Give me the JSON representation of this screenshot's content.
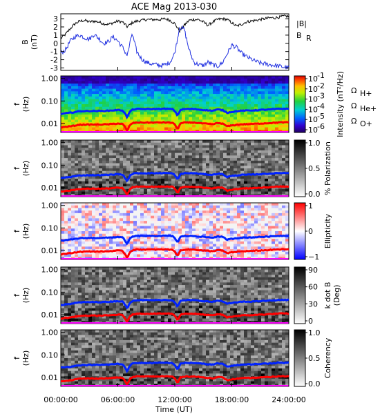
{
  "figure": {
    "title": "ACE Mag 2013-030",
    "xlabel": "Time (UT)",
    "xticks": [
      "00:00:00",
      "06:00:00",
      "12:00:00",
      "18:00:00",
      "24:00:00"
    ]
  },
  "colors": {
    "B_total": "#000000",
    "B_R": "#1f2fe0",
    "H_plus": "#0022ff",
    "He_plus": "#ff0000",
    "O_plus": "#ff00ff"
  },
  "chart_data": [
    {
      "type": "line",
      "panel": "B",
      "ylabel_line1": "B",
      "ylabel_line2": "(nT)",
      "ylim": [
        -3.3,
        3.6
      ],
      "yticks": [
        "3",
        "2",
        "1",
        "0",
        "-1",
        "-2",
        "-3"
      ],
      "xlim_hours": [
        0,
        24
      ],
      "series": [
        {
          "name": "|B|",
          "x_hours": [
            0,
            0.5,
            1,
            1.5,
            2,
            2.5,
            3,
            3.5,
            4,
            4.5,
            5,
            5.5,
            6,
            6.5,
            7,
            7.5,
            8,
            8.5,
            9,
            9.5,
            10,
            10.5,
            11,
            11.5,
            12,
            12.5,
            13,
            13.5,
            14,
            14.5,
            15,
            15.5,
            16,
            16.5,
            17,
            17.5,
            18,
            18.5,
            19,
            19.5,
            20,
            20.5,
            21,
            21.5,
            22,
            22.5,
            23,
            23.5,
            24
          ],
          "values": [
            0.6,
            1.1,
            1.8,
            2.4,
            2.7,
            2.8,
            2.6,
            2.7,
            2.6,
            2.4,
            2.3,
            2.5,
            2.7,
            2.6,
            2.0,
            2.5,
            2.7,
            2.8,
            2.9,
            2.9,
            2.9,
            2.9,
            3.0,
            2.8,
            2.4,
            1.5,
            2.2,
            2.8,
            2.9,
            2.9,
            2.6,
            2.2,
            2.6,
            2.9,
            3.0,
            2.9,
            2.5,
            2.1,
            2.3,
            2.6,
            2.7,
            2.8,
            2.9,
            3.0,
            3.1,
            3.1,
            3.2,
            3.3,
            3.3
          ]
        },
        {
          "name": "B_R",
          "x_hours": [
            0,
            0.5,
            1,
            1.5,
            2,
            2.5,
            3,
            3.5,
            4,
            4.5,
            5,
            5.5,
            6,
            6.5,
            7,
            7.5,
            8,
            8.5,
            9,
            9.5,
            10,
            10.5,
            11,
            11.5,
            12,
            12.5,
            13,
            13.5,
            14,
            14.5,
            15,
            15.5,
            16,
            16.5,
            17,
            17.5,
            18,
            18.5,
            19,
            19.5,
            20,
            20.5,
            21,
            21.5,
            22,
            22.5,
            23,
            23.5,
            24
          ],
          "values": [
            -1.2,
            -0.8,
            0.3,
            0.8,
            1.0,
            0.7,
            0.5,
            1.1,
            0.6,
            0.0,
            0.2,
            0.8,
            0.3,
            -0.5,
            -1.5,
            1.2,
            -1.0,
            -1.9,
            -2.3,
            -2.5,
            -2.6,
            -2.7,
            -2.6,
            -2.3,
            -1.2,
            2.0,
            1.7,
            -0.8,
            -2.3,
            -2.6,
            -2.7,
            -2.3,
            -2.6,
            -2.8,
            -2.4,
            -1.3,
            -0.2,
            -0.5,
            -1.2,
            -1.6,
            -1.9,
            -2.2,
            -2.4,
            -2.5,
            -2.6,
            -2.7,
            -2.8,
            -2.9,
            -3.0
          ]
        }
      ],
      "legend": [
        "|B|",
        "B",
        "R"
      ]
    },
    {
      "type": "heatmap",
      "panel": "intensity",
      "ylabel_line1": "f",
      "ylabel_line2": "(Hz)",
      "yscale": "log",
      "ylim": [
        0.004,
        1.3
      ],
      "yticks": [
        "1.00",
        "0.10",
        "0.01"
      ],
      "colorbar_label": "Intensity (nT²/Hz)",
      "colorbar_ticks": [
        "10",
        "10",
        "10",
        "10",
        "10",
        "10"
      ],
      "colorbar_exponents": [
        "-1",
        "-2",
        "-3",
        "-4",
        "-5",
        "-6"
      ],
      "colorscale": "rainbow",
      "legend": [
        "Ω",
        "H+",
        "Ω",
        "He+",
        "Ω",
        "O+"
      ]
    },
    {
      "type": "heatmap",
      "panel": "polarization",
      "ylabel_line1": "f",
      "ylabel_line2": "(Hz)",
      "yscale": "log",
      "yticks": [
        "1.00",
        "0.10",
        "0.01"
      ],
      "colorbar_label": "% Polarization",
      "colorbar_ticks": [
        "1.0",
        "0.5",
        "0.0"
      ],
      "colorscale": "gray_reversed"
    },
    {
      "type": "heatmap",
      "panel": "ellipticity",
      "ylabel_line1": "f",
      "ylabel_line2": "(Hz)",
      "yscale": "log",
      "yticks": [
        "1.00",
        "0.10",
        "0.01"
      ],
      "colorbar_label": "Ellipticity",
      "colorbar_ticks": [
        "1",
        "0",
        "−1"
      ],
      "colorscale": "blue_white_red"
    },
    {
      "type": "heatmap",
      "panel": "kdotB",
      "ylabel_line1": "f",
      "ylabel_line2": "(Hz)",
      "yscale": "log",
      "yticks": [
        "1.00",
        "0.10",
        "0.01"
      ],
      "colorbar_label_line1": "k dot B",
      "colorbar_label_line2": "(Deg)",
      "colorbar_ticks": [
        "90",
        "60",
        "30",
        "0"
      ],
      "colorscale": "gray_reversed"
    },
    {
      "type": "heatmap",
      "panel": "coherency",
      "ylabel_line1": "f",
      "ylabel_line2": "(Hz)",
      "yscale": "log",
      "yticks": [
        "1.00",
        "0.10",
        "0.01"
      ],
      "colorbar_label": "Coherency",
      "colorbar_ticks": [
        "1.0",
        "0.5",
        "0.0"
      ],
      "colorscale": "gray_reversed"
    }
  ],
  "gyrofrequencies": {
    "x_hours": [
      0,
      1,
      2,
      3,
      4,
      5,
      6,
      6.5,
      7,
      7.3,
      7.6,
      8,
      9,
      10,
      11,
      11.8,
      12,
      12.3,
      12.6,
      13,
      14,
      15,
      16,
      16.5,
      17,
      17.5,
      18,
      19,
      20,
      21,
      22,
      23,
      24
    ],
    "H_plus_Hz": [
      0.027,
      0.03,
      0.035,
      0.036,
      0.036,
      0.037,
      0.04,
      0.038,
      0.018,
      0.035,
      0.042,
      0.044,
      0.044,
      0.044,
      0.045,
      0.043,
      0.035,
      0.022,
      0.04,
      0.044,
      0.044,
      0.04,
      0.037,
      0.042,
      0.04,
      0.03,
      0.033,
      0.037,
      0.038,
      0.04,
      0.042,
      0.045,
      0.045
    ],
    "He_plus_Hz": [
      0.0068,
      0.0075,
      0.0088,
      0.009,
      0.009,
      0.0092,
      0.01,
      0.0095,
      0.0045,
      0.0088,
      0.0105,
      0.011,
      0.011,
      0.011,
      0.0112,
      0.0108,
      0.0088,
      0.0055,
      0.01,
      0.011,
      0.011,
      0.01,
      0.0092,
      0.0105,
      0.01,
      0.0075,
      0.0082,
      0.0092,
      0.0095,
      0.01,
      0.0105,
      0.0112,
      0.0112
    ],
    "O_plus_Hz": [
      0.0017,
      0.0019,
      0.0022,
      0.0022,
      0.0022,
      0.0023,
      0.0025,
      0.0024,
      0.0011,
      0.0022,
      0.0026,
      0.0027,
      0.0028,
      0.0028,
      0.0028,
      0.0027,
      0.0022,
      0.0014,
      0.0025,
      0.0028,
      0.0028,
      0.0025,
      0.0023,
      0.0026,
      0.0025,
      0.0019,
      0.0021,
      0.0023,
      0.0024,
      0.0025,
      0.0026,
      0.0028,
      0.0028
    ]
  }
}
